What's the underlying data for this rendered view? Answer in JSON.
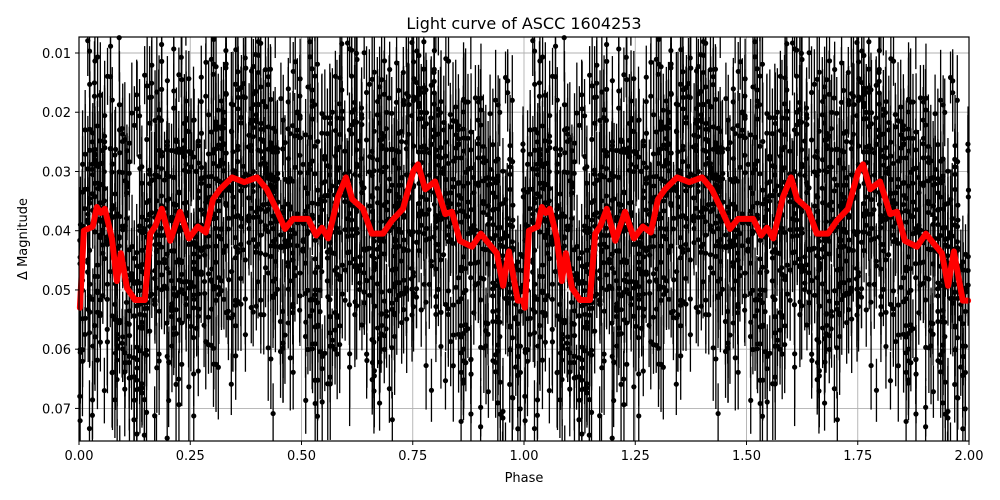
{
  "chart_data": {
    "type": "scatter",
    "title": "Light curve of ASCC 1604253",
    "xlabel": "Phase",
    "ylabel": "Δ Magnitude",
    "xlim": [
      0.0,
      2.0
    ],
    "ylim": [
      0.0755,
      0.0073
    ],
    "y_inverted": true,
    "grid": true,
    "legend": null,
    "x_ticks": [
      "0.00",
      "0.25",
      "0.50",
      "0.75",
      "1.00",
      "1.25",
      "1.50",
      "1.75",
      "2.00"
    ],
    "x_tick_values": [
      0.0,
      0.25,
      0.5,
      0.75,
      1.0,
      1.25,
      1.5,
      1.75,
      2.0
    ],
    "y_ticks": [
      "0.01",
      "0.02",
      "0.03",
      "0.04",
      "0.05",
      "0.06",
      "0.07"
    ],
    "y_tick_values": [
      0.01,
      0.02,
      0.03,
      0.04,
      0.05,
      0.06,
      0.07
    ],
    "series": [
      {
        "name": "observations",
        "kind": "errorbar-scatter",
        "color": "#000000",
        "description": "Dense black points with vertical error bars, phase-folded and repeated over two cycles; scatter spans roughly 0.008 to 0.075 in Δ magnitude",
        "approx_mean": 0.04,
        "approx_range": [
          0.008,
          0.075
        ]
      },
      {
        "name": "binned model",
        "kind": "line",
        "color": "#ff0000",
        "linewidth": 6,
        "x": [
          0.002,
          0.011,
          0.031,
          0.04,
          0.049,
          0.058,
          0.074,
          0.085,
          0.094,
          0.108,
          0.126,
          0.148,
          0.16,
          0.171,
          0.186,
          0.205,
          0.227,
          0.247,
          0.267,
          0.285,
          0.301,
          0.317,
          0.344,
          0.371,
          0.4,
          0.422,
          0.443,
          0.463,
          0.481,
          0.515,
          0.533,
          0.546,
          0.56,
          0.582,
          0.6,
          0.614,
          0.638,
          0.658,
          0.683,
          0.703,
          0.728,
          0.751,
          0.762,
          0.778,
          0.8,
          0.823,
          0.838,
          0.856,
          0.883,
          0.903,
          0.921,
          0.939,
          0.953,
          0.966,
          0.986,
          0.998
        ],
        "y": [
          0.053,
          0.04,
          0.0393,
          0.036,
          0.037,
          0.0363,
          0.0413,
          0.0485,
          0.0438,
          0.0497,
          0.0517,
          0.0517,
          0.0405,
          0.0393,
          0.0363,
          0.0417,
          0.0368,
          0.0413,
          0.0393,
          0.0403,
          0.0347,
          0.033,
          0.031,
          0.0318,
          0.031,
          0.033,
          0.0363,
          0.0397,
          0.038,
          0.038,
          0.0408,
          0.0395,
          0.0413,
          0.0343,
          0.031,
          0.0347,
          0.0363,
          0.0405,
          0.0405,
          0.0383,
          0.0363,
          0.03,
          0.0288,
          0.033,
          0.0317,
          0.0372,
          0.0368,
          0.0417,
          0.0427,
          0.0405,
          0.0422,
          0.0438,
          0.0493,
          0.0435,
          0.0518,
          0.0518
        ]
      }
    ]
  }
}
